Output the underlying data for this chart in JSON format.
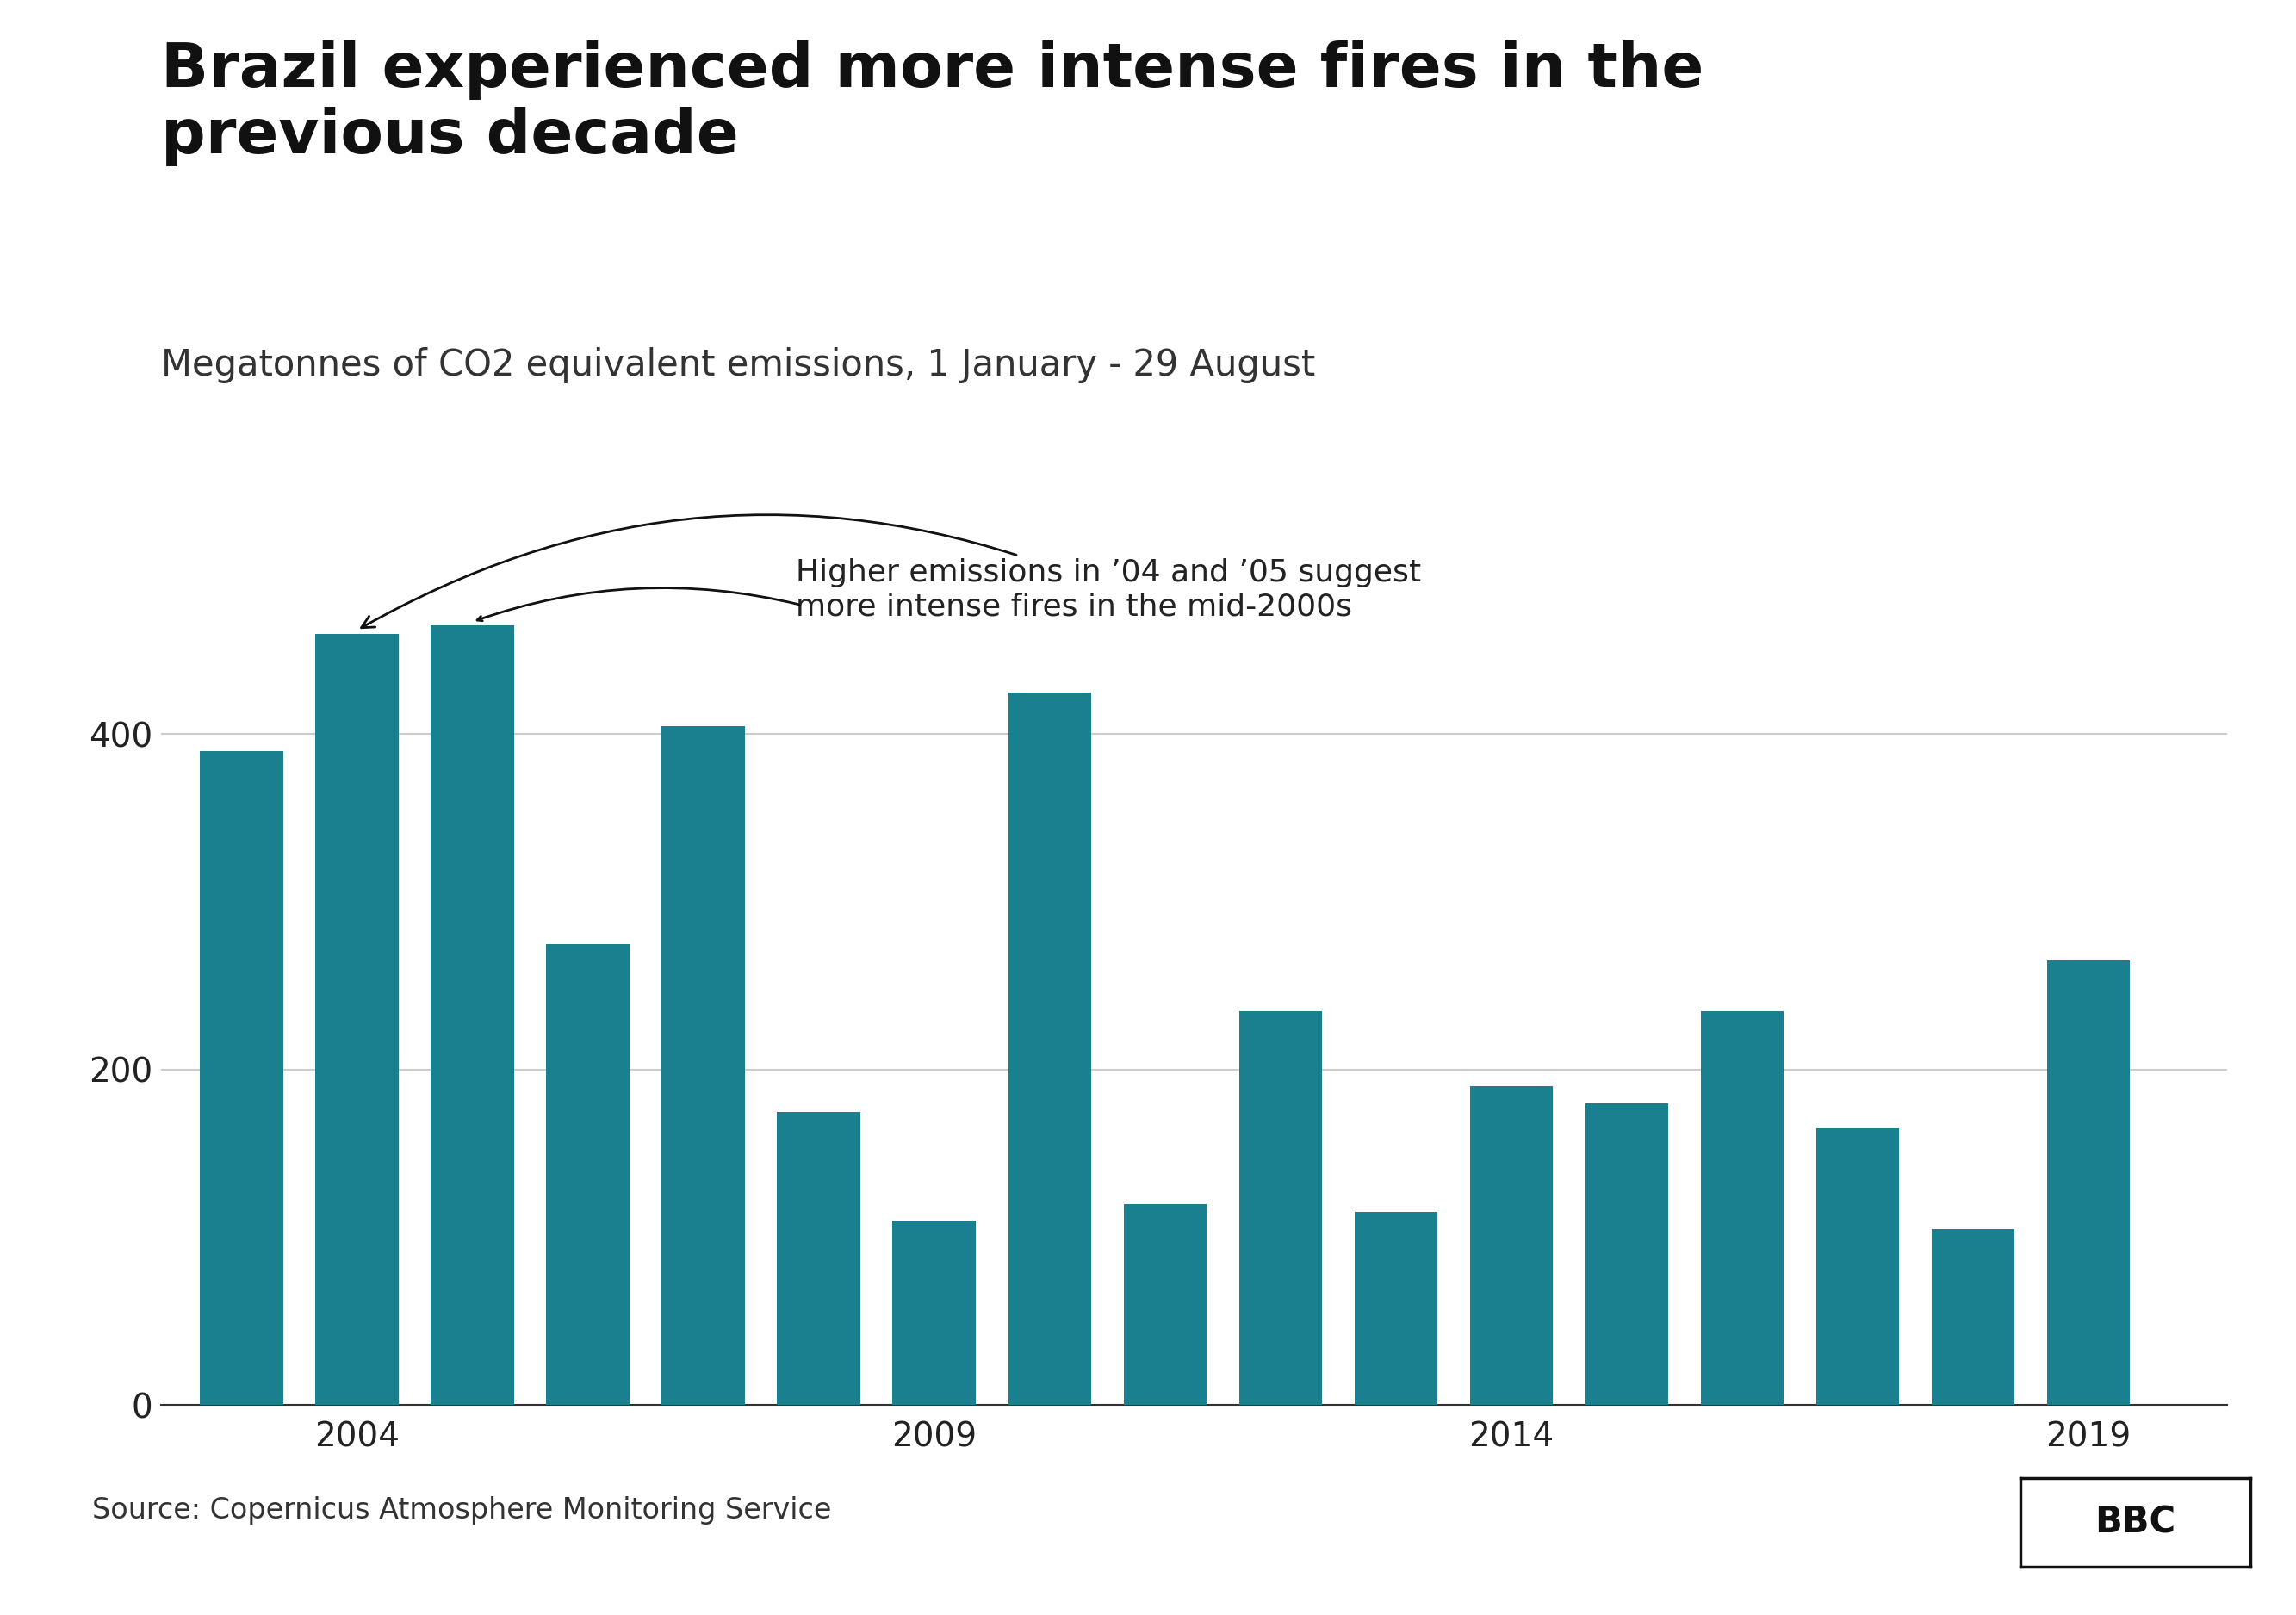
{
  "years": [
    2003,
    2004,
    2005,
    2006,
    2007,
    2008,
    2009,
    2010,
    2011,
    2012,
    2013,
    2014,
    2015,
    2016,
    2017,
    2018,
    2019
  ],
  "values": [
    390,
    460,
    465,
    275,
    405,
    175,
    110,
    425,
    120,
    235,
    115,
    190,
    180,
    235,
    165,
    105,
    265
  ],
  "bar_color": "#1a7f8e",
  "title": "Brazil experienced more intense fires in the\nprevious decade",
  "subtitle": "Megatonnes of CO2 equivalent emissions, 1 January - 29 August",
  "source": "Source: Copernicus Atmosphere Monitoring Service",
  "annotation_text": "Higher emissions in ’04 and ’05 suggest\nmore intense fires in the mid-2000s",
  "xtick_labels": [
    "2004",
    "2009",
    "2014",
    "2019"
  ],
  "xtick_positions": [
    2004,
    2009,
    2014,
    2019
  ],
  "ytick_labels": [
    "0",
    "200",
    "400"
  ],
  "ytick_values": [
    0,
    200,
    400
  ],
  "ylim": [
    0,
    520
  ],
  "xlim": [
    2002.3,
    2020.2
  ],
  "background_color": "#ffffff",
  "title_fontsize": 52,
  "subtitle_fontsize": 30,
  "source_fontsize": 24,
  "tick_fontsize": 28,
  "annotation_fontsize": 26,
  "bar_width": 0.72
}
